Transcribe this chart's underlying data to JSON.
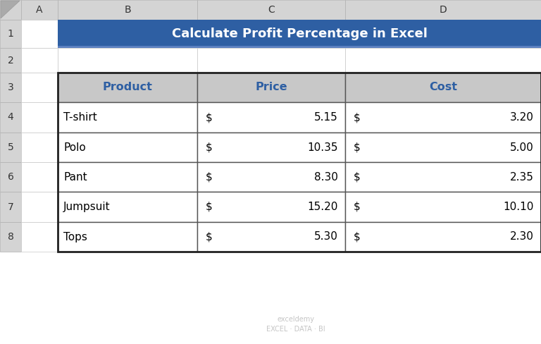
{
  "title": "Calculate Profit Percentage in Excel",
  "title_bg": "#2E5FA3",
  "title_text_color": "#FFFFFF",
  "header_text_color": "#2E5FA3",
  "col_headers": [
    "Product",
    "Price",
    "Cost"
  ],
  "products": [
    "T-shirt",
    "Polo",
    "Pant",
    "Jumpsuit",
    "Tops"
  ],
  "prices": [
    "5.15",
    "10.35",
    "8.30",
    "15.20",
    "5.30"
  ],
  "costs": [
    "3.20",
    "5.00",
    "2.35",
    "10.10",
    "2.30"
  ],
  "cell_text_color": "#000000",
  "col_header_row_bg": "#C8C8C8",
  "watermark_text": "exceldemy\nEXCEL · DATA · BI",
  "watermark_color": "#BBBBBB",
  "excel_header_bg": "#D4D4D4",
  "excel_bg": "#FFFFFF",
  "border_color": "#555555",
  "outer_border_color": "#222222"
}
